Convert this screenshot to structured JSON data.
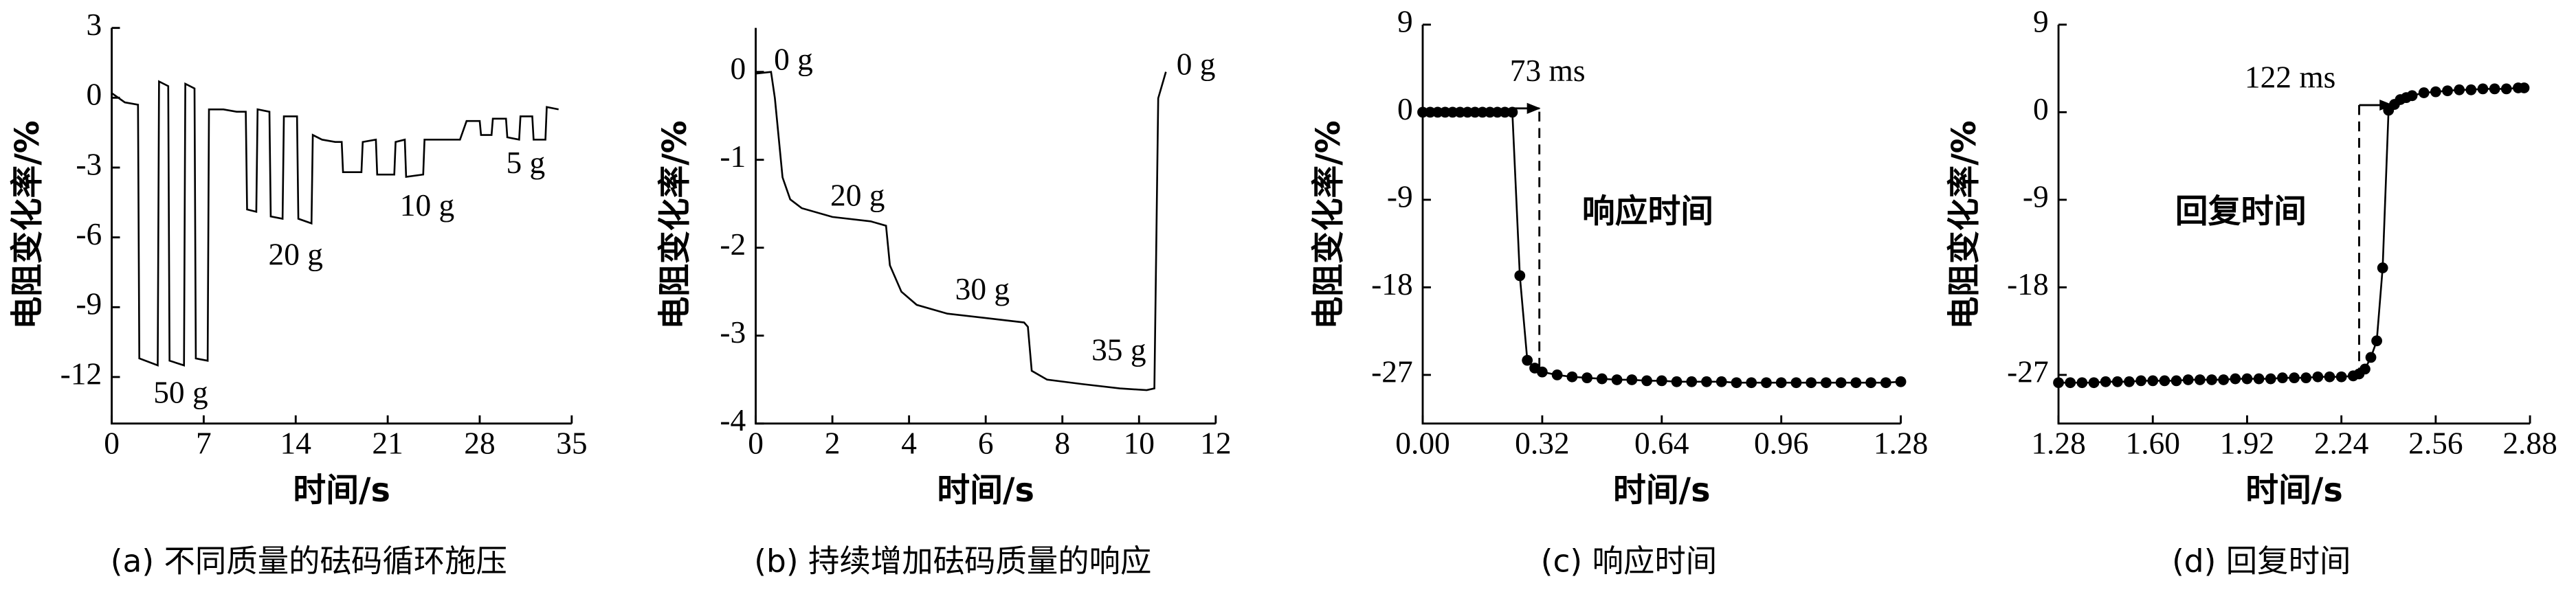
{
  "chart_data": [
    {
      "type": "line",
      "title": "(a) 不同质量的砝码循环施压",
      "xlabel": "时间/s",
      "ylabel": "电阻变化率/%",
      "color": "#000000",
      "xlim": [
        0,
        35
      ],
      "xticks": [
        0,
        7,
        14,
        21,
        28,
        35
      ],
      "ylim": [
        -14,
        3
      ],
      "yticks": [
        3,
        0,
        -3,
        -6,
        -9,
        -12
      ],
      "annotations": [
        "50 g",
        "20 g",
        "10 g",
        "5 g"
      ],
      "x": [
        0,
        1,
        2,
        2.1,
        3.5,
        3.6,
        4.3,
        4.4,
        5.5,
        5.6,
        6.3,
        6.4,
        7.3,
        7.4,
        8.5,
        9.5,
        10.2,
        10.3,
        11,
        11.1,
        12,
        12.1,
        13,
        13.1,
        14.1,
        14.2,
        15.2,
        15.3,
        16,
        17,
        17.5,
        17.6,
        19,
        19.1,
        20.1,
        20.2,
        21.5,
        21.6,
        22.3,
        22.4,
        23.7,
        23.8,
        25,
        26.5,
        27,
        28,
        28.1,
        28.9,
        29,
        30,
        30.1,
        31,
        31.1,
        32,
        32.1,
        33,
        33.1,
        34
      ],
      "values": [
        0.2,
        -0.2,
        -0.3,
        -11.2,
        -11.5,
        0.7,
        0.5,
        -11.3,
        -11.5,
        0.6,
        0.4,
        -11.2,
        -11.3,
        -0.5,
        -0.5,
        -0.6,
        -0.6,
        -4.8,
        -4.9,
        -0.5,
        -0.6,
        -5.1,
        -5.2,
        -0.8,
        -0.8,
        -5.2,
        -5.4,
        -1.6,
        -1.8,
        -1.9,
        -1.9,
        -3.2,
        -3.2,
        -1.9,
        -1.8,
        -3.3,
        -3.3,
        -1.9,
        -1.8,
        -3.4,
        -3.3,
        -1.8,
        -1.8,
        -1.8,
        -1.0,
        -1.0,
        -1.6,
        -1.6,
        -0.9,
        -0.9,
        -1.7,
        -1.8,
        -0.8,
        -0.8,
        -1.8,
        -1.8,
        -0.4,
        -0.5
      ]
    },
    {
      "type": "line",
      "title": "(b) 持续增加砝码质量的响应",
      "xlabel": "时间/s",
      "ylabel": "电阻变化率/%",
      "color": "#000000",
      "xlim": [
        0,
        12
      ],
      "xticks": [
        0,
        2,
        4,
        6,
        8,
        10,
        12
      ],
      "ylim": [
        -4,
        0.5
      ],
      "yticks": [
        0,
        -1,
        -2,
        -3,
        -4
      ],
      "annotations": [
        "0 g",
        "20 g",
        "30 g",
        "35 g",
        "0 g"
      ],
      "x": [
        0,
        0.4,
        0.5,
        0.7,
        0.9,
        1.2,
        2,
        3,
        3.4,
        3.5,
        3.8,
        4.2,
        5,
        6,
        7,
        7.1,
        7.2,
        7.6,
        8.5,
        9.5,
        10.2,
        10.4,
        10.5,
        10.7
      ],
      "values": [
        -0.02,
        0,
        -0.3,
        -1.2,
        -1.45,
        -1.55,
        -1.65,
        -1.7,
        -1.75,
        -2.2,
        -2.5,
        -2.65,
        -2.75,
        -2.8,
        -2.85,
        -2.9,
        -3.4,
        -3.5,
        -3.55,
        -3.6,
        -3.62,
        -3.6,
        -0.3,
        0.0
      ]
    },
    {
      "type": "scatter",
      "title": "(c) 响应时间",
      "xlabel": "时间/s",
      "ylabel": "电阻变化率/%",
      "color": "#000000",
      "xlim": [
        0,
        1.28
      ],
      "xticks": [
        {
          "value": 0,
          "label": "0.00"
        },
        0.32,
        0.64,
        0.96,
        1.28
      ],
      "ylim": [
        -32,
        9
      ],
      "yticks": [
        9,
        0,
        -9,
        -18,
        -27
      ],
      "annotations": [
        "73 ms",
        "响应时间"
      ],
      "x": [
        0,
        0.02,
        0.04,
        0.06,
        0.08,
        0.1,
        0.12,
        0.14,
        0.16,
        0.18,
        0.2,
        0.22,
        0.24,
        0.26,
        0.28,
        0.3,
        0.32,
        0.36,
        0.4,
        0.44,
        0.48,
        0.52,
        0.56,
        0.6,
        0.64,
        0.68,
        0.72,
        0.76,
        0.8,
        0.84,
        0.88,
        0.92,
        0.96,
        1.0,
        1.04,
        1.08,
        1.12,
        1.16,
        1.2,
        1.24,
        1.28
      ],
      "values": [
        0,
        0,
        0,
        0,
        0,
        0,
        0,
        0,
        0,
        0,
        0,
        0,
        0,
        -16.8,
        -25.5,
        -26.3,
        -26.7,
        -27,
        -27.2,
        -27.3,
        -27.4,
        -27.5,
        -27.5,
        -27.6,
        -27.6,
        -27.7,
        -27.7,
        -27.7,
        -27.7,
        -27.8,
        -27.8,
        -27.8,
        -27.8,
        -27.8,
        -27.8,
        -27.8,
        -27.8,
        -27.8,
        -27.8,
        -27.8,
        -27.7
      ]
    },
    {
      "type": "scatter",
      "title": "(d) 回复时间",
      "xlabel": "时间/s",
      "ylabel": "电阻变化率/%",
      "color": "#000000",
      "xlim": [
        1.28,
        2.88
      ],
      "xticks": [
        1.28,
        {
          "value": 1.6,
          "label": "1.60"
        },
        1.92,
        2.24,
        2.56,
        2.88
      ],
      "ylim": [
        -32,
        9
      ],
      "yticks": [
        9,
        0,
        -9,
        -18,
        -27
      ],
      "annotations": [
        "122 ms",
        "回复时间"
      ],
      "x": [
        1.28,
        1.32,
        1.36,
        1.4,
        1.44,
        1.48,
        1.52,
        1.56,
        1.6,
        1.64,
        1.68,
        1.72,
        1.76,
        1.8,
        1.84,
        1.88,
        1.92,
        1.96,
        2.0,
        2.04,
        2.08,
        2.12,
        2.16,
        2.2,
        2.24,
        2.28,
        2.3,
        2.32,
        2.34,
        2.36,
        2.38,
        2.4,
        2.42,
        2.44,
        2.46,
        2.48,
        2.52,
        2.56,
        2.6,
        2.64,
        2.68,
        2.72,
        2.76,
        2.8,
        2.84,
        2.86
      ],
      "values": [
        -27.8,
        -27.8,
        -27.8,
        -27.8,
        -27.7,
        -27.7,
        -27.7,
        -27.6,
        -27.6,
        -27.6,
        -27.6,
        -27.5,
        -27.5,
        -27.5,
        -27.5,
        -27.4,
        -27.4,
        -27.4,
        -27.4,
        -27.3,
        -27.3,
        -27.3,
        -27.2,
        -27.2,
        -27.2,
        -27.1,
        -26.9,
        -26.4,
        -25.2,
        -23.5,
        -16,
        0.2,
        0.8,
        1.3,
        1.5,
        1.7,
        2.0,
        2.1,
        2.2,
        2.3,
        2.3,
        2.4,
        2.4,
        2.4,
        2.5,
        2.5
      ]
    }
  ]
}
